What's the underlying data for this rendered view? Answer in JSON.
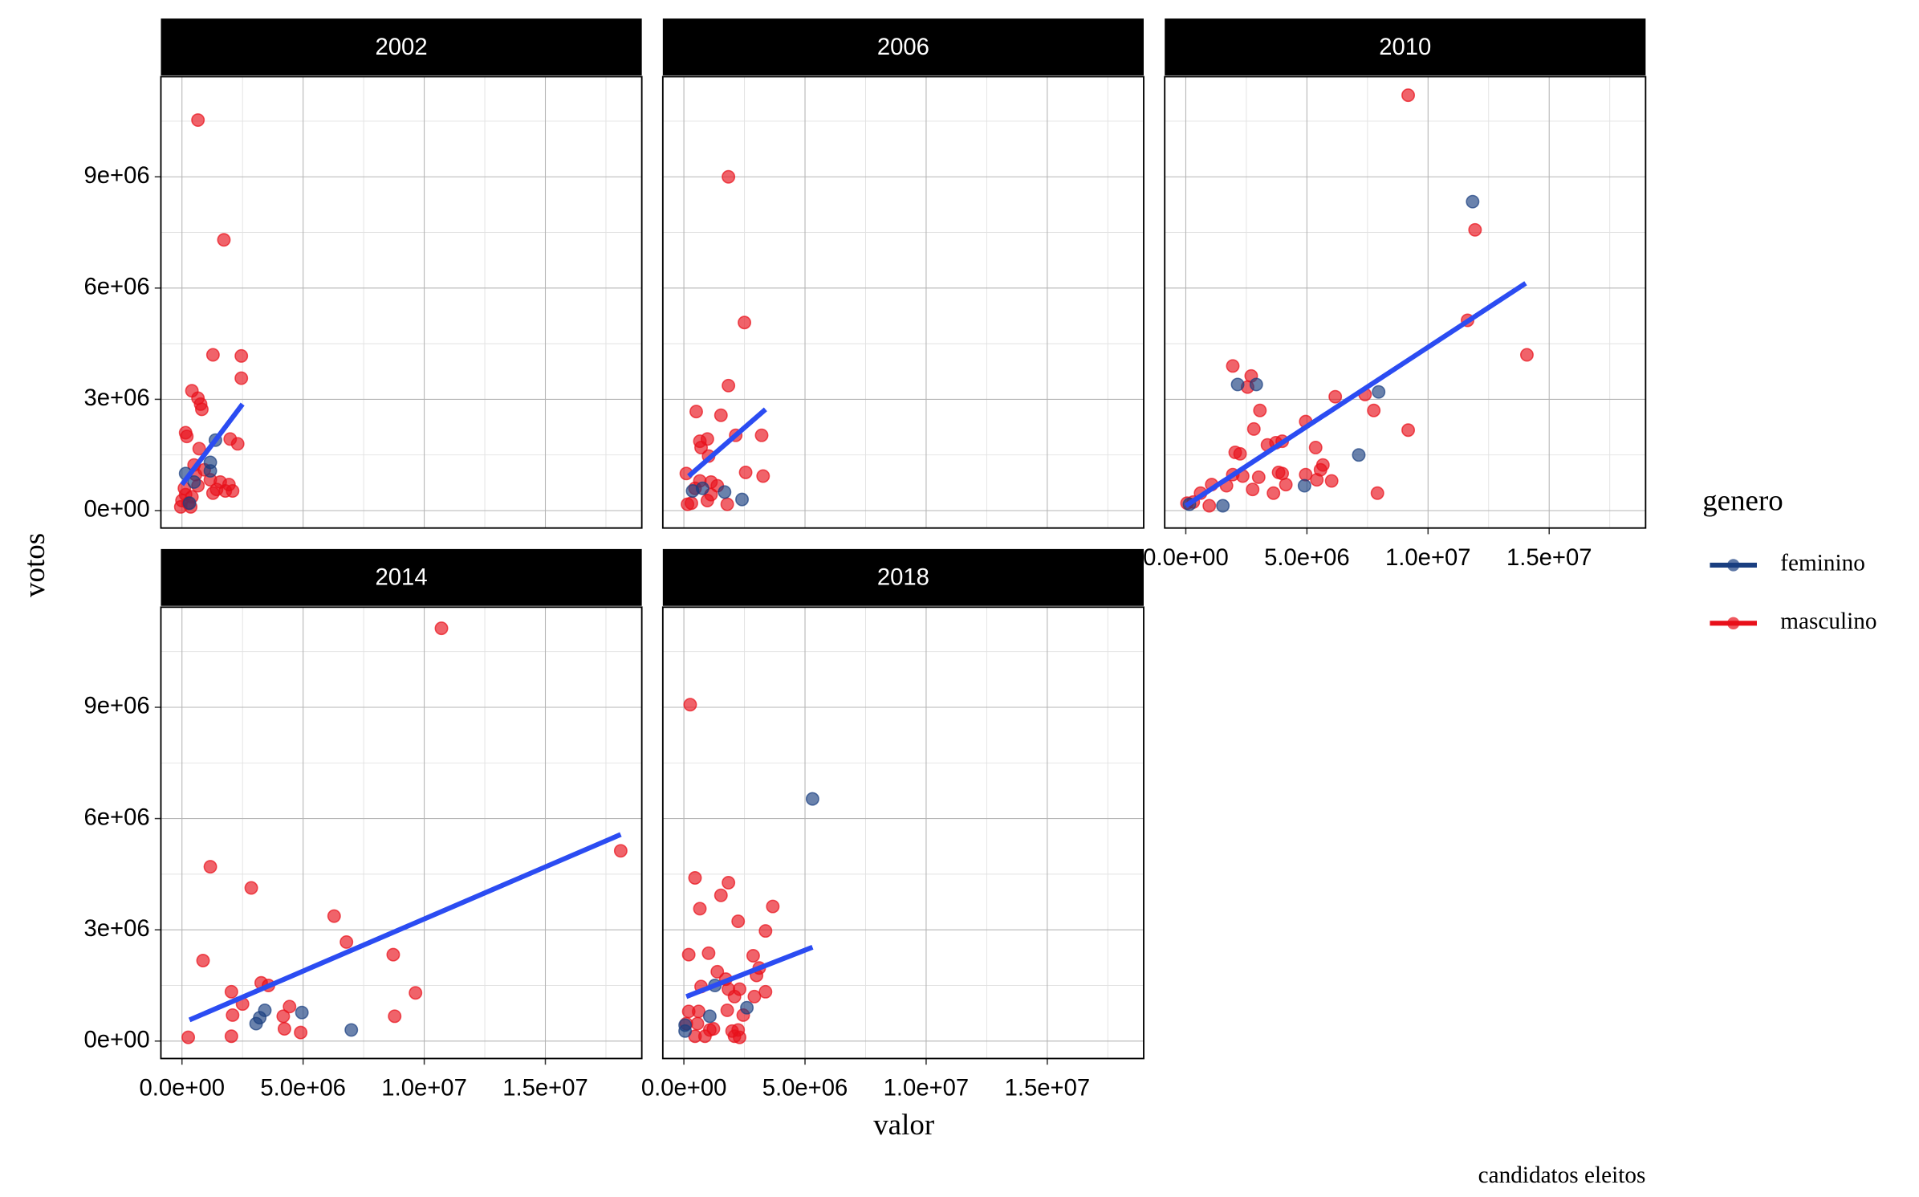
{
  "chart_data": {
    "type": "scatter",
    "x_label": "valor",
    "y_label": "votos",
    "legend_title": "genero",
    "caption": "candidatos eleitos",
    "xlim": [
      -870000.0,
      18980000.0
    ],
    "ylim": [
      -470000.0,
      11700000.0
    ],
    "xticks": [
      {
        "value": 0,
        "label": "0.0e+00"
      },
      {
        "value": 5000000.0,
        "label": "5.0e+06"
      },
      {
        "value": 10000000.0,
        "label": "1.0e+07"
      },
      {
        "value": 15000000.0,
        "label": "1.5e+07"
      }
    ],
    "yticks": [
      {
        "value": 0,
        "label": "0e+00"
      },
      {
        "value": 3000000.0,
        "label": "3e+06"
      },
      {
        "value": 6000000.0,
        "label": "6e+06"
      },
      {
        "value": 9000000.0,
        "label": "9e+06"
      }
    ],
    "x_minor": [
      2500000.0,
      7500000.0,
      12500000.0,
      17500000.0
    ],
    "y_minor": [
      1500000.0,
      4500000.0,
      7500000.0,
      10500000.0
    ],
    "grid": true,
    "trend_color": "#2b4cf2",
    "series": [
      {
        "name": "feminino",
        "color": "#1a3f80"
      },
      {
        "name": "masculino",
        "color": "#e8101a"
      }
    ],
    "facets": [
      {
        "title": "2002",
        "x": [
          [
            1380000.0,
            1170000.0,
            1170000.0,
            150000.0,
            500000.0,
            310000.0
          ],
          [
            660000.0,
            1730000.0,
            1280000.0,
            2450000.0,
            2450000.0,
            410000.0,
            660000.0,
            770000.0,
            820000.0,
            150000.0,
            200000.0,
            1990000.0,
            2300000.0,
            710000.0,
            500000.0,
            920000.0,
            560000.0,
            1170000.0,
            1580000.0,
            1940000.0,
            660000.0,
            1430000.0,
            1790000.0,
            2090000.0,
            1280000.0,
            150000.0,
            410000.0,
            0,
            260000.0,
            -50000.0,
            360000.0,
            100000.0
          ]
        ],
        "values": [
          [
            1900000.0,
            1300000.0,
            1070000.0,
            1000000.0,
            770000.0,
            200000.0
          ],
          [
            10530000.0,
            7300000.0,
            4200000.0,
            4170000.0,
            3570000.0,
            3230000.0,
            3030000.0,
            2870000.0,
            2730000.0,
            2100000.0,
            2000000.0,
            1930000.0,
            1800000.0,
            1670000.0,
            1230000.0,
            1100000.0,
            970000.0,
            830000.0,
            770000.0,
            700000.0,
            670000.0,
            570000.0,
            530000.0,
            530000.0,
            470000.0,
            430000.0,
            370000.0,
            270000.0,
            200000.0,
            100000.0,
            100000.0,
            600000.0
          ]
        ],
        "trend_x": [
          0,
          2500000.0
        ],
        "trend_values": [
          700000.0,
          2870000.0
        ]
      },
      {
        "title": "2006",
        "x": [
          [
            770000.0,
            1680000.0,
            2400000.0,
            360000.0
          ],
          [
            1840000.0,
            2500000.0,
            1840000.0,
            510000.0,
            1530000.0,
            2140000.0,
            3210000.0,
            970000.0,
            660000.0,
            710000.0,
            1020000.0,
            100000.0,
            2550000.0,
            3270000.0,
            660000.0,
            1120000.0,
            1380000.0,
            460000.0,
            1120000.0,
            310000.0,
            970000.0,
            1790000.0,
            150000.0
          ]
        ],
        "values": [
          [
            600000.0,
            500000.0,
            300000.0,
            530000.0
          ],
          [
            9000000.0,
            5070000.0,
            3370000.0,
            2670000.0,
            2570000.0,
            2030000.0,
            2030000.0,
            1930000.0,
            1870000.0,
            1700000.0,
            1470000.0,
            1000000.0,
            1030000.0,
            930000.0,
            800000.0,
            770000.0,
            670000.0,
            600000.0,
            430000.0,
            200000.0,
            270000.0,
            170000.0,
            170000.0
          ]
        ],
        "trend_x": [
          200000.0,
          3370000.0
        ],
        "trend_values": [
          930000.0,
          2730000.0
        ]
      },
      {
        "title": "2010",
        "x": [
          [
            11840000.0,
            7960000.0,
            2140000.0,
            2910000.0,
            7140000.0,
            4900000.0,
            1530000.0,
            150000.0
          ],
          [
            9180000.0,
            11940000.0,
            11630000.0,
            14080000.0,
            1940000.0,
            2700000.0,
            2550000.0,
            6170000.0,
            7400000.0,
            3060000.0,
            7760000.0,
            4950000.0,
            9180000.0,
            2810000.0,
            3980000.0,
            3370000.0,
            3720000.0,
            5360000.0,
            2040000.0,
            2240000.0,
            5660000.0,
            5560000.0,
            3830000.0,
            3980000.0,
            1940000.0,
            2350000.0,
            4950000.0,
            5410000.0,
            6020000.0,
            3010000.0,
            1070000.0,
            1680000.0,
            4130000.0,
            2760000.0,
            610000.0,
            3620000.0,
            7910000.0,
            970000.0,
            50000.0,
            310000.0
          ]
        ],
        "values": [
          [
            8330000.0,
            3200000.0,
            3400000.0,
            3400000.0,
            1500000.0,
            670000.0,
            130000.0,
            170000.0
          ],
          [
            11200000.0,
            7570000.0,
            5130000.0,
            4200000.0,
            3900000.0,
            3630000.0,
            3330000.0,
            3070000.0,
            3130000.0,
            2700000.0,
            2700000.0,
            2400000.0,
            2170000.0,
            2200000.0,
            1870000.0,
            1770000.0,
            1830000.0,
            1700000.0,
            1570000.0,
            1530000.0,
            1230000.0,
            1100000.0,
            1030000.0,
            1000000.0,
            970000.0,
            930000.0,
            970000.0,
            830000.0,
            800000.0,
            900000.0,
            700000.0,
            670000.0,
            700000.0,
            570000.0,
            470000.0,
            470000.0,
            470000.0,
            130000.0,
            200000.0,
            230000.0
          ]
        ],
        "trend_x": [
          0,
          14030000.0
        ],
        "trend_values": [
          130000.0,
          6130000.0
        ]
      },
      {
        "title": "2014",
        "x": [
          [
            3420000.0,
            3210000.0,
            4950000.0,
            3060000.0,
            6990000.0
          ],
          [
            10710000.0,
            1170000.0,
            2860000.0,
            6280000.0,
            6790000.0,
            8720000.0,
            870000.0,
            18110000.0,
            9640000.0,
            2040000.0,
            3270000.0,
            3570000.0,
            2500000.0,
            4440000.0,
            2090000.0,
            4180000.0,
            8780000.0,
            4230000.0,
            4900000.0,
            2040000.0,
            260000.0
          ]
        ],
        "values": [
          [
            830000.0,
            630000.0,
            770000.0,
            470000.0,
            300000.0
          ],
          [
            11130000.0,
            4700000.0,
            4130000.0,
            3370000.0,
            2670000.0,
            2330000.0,
            2170000.0,
            5130000.0,
            1300000.0,
            1330000.0,
            1570000.0,
            1500000.0,
            1000000.0,
            930000.0,
            700000.0,
            670000.0,
            670000.0,
            330000.0,
            230000.0,
            130000.0,
            100000.0
          ]
        ],
        "trend_x": [
          310000.0,
          18110000.0
        ],
        "trend_values": [
          570000.0,
          5570000.0
        ]
      },
      {
        "title": "2018",
        "x": [
          [
            5310000.0,
            1280000.0,
            1070000.0,
            2600000.0,
            50000.0,
            50000.0
          ],
          [
            260000.0,
            460000.0,
            1840000.0,
            3670000.0,
            1530000.0,
            660000.0,
            2240000.0,
            3370000.0,
            200000.0,
            1020000.0,
            2860000.0,
            3110000.0,
            1380000.0,
            3000000.0,
            1730000.0,
            710000.0,
            1840000.0,
            2300000.0,
            3370000.0,
            2090000.0,
            2910000.0,
            200000.0,
            610000.0,
            1790000.0,
            2450000.0,
            100000.0,
            1070000.0,
            1220000.0,
            1990000.0,
            2240000.0,
            460000.0,
            870000.0,
            2090000.0,
            2300000.0,
            560000.0
          ]
        ],
        "values": [
          [
            6530000.0,
            1500000.0,
            670000.0,
            900000.0,
            430000.0,
            270000.0
          ],
          [
            9070000.0,
            4400000.0,
            4270000.0,
            3630000.0,
            3930000.0,
            3570000.0,
            3230000.0,
            2970000.0,
            2330000.0,
            2370000.0,
            2300000.0,
            1970000.0,
            1870000.0,
            1770000.0,
            1670000.0,
            1470000.0,
            1400000.0,
            1400000.0,
            1330000.0,
            1200000.0,
            1200000.0,
            800000.0,
            800000.0,
            830000.0,
            700000.0,
            470000.0,
            300000.0,
            330000.0,
            270000.0,
            300000.0,
            130000.0,
            130000.0,
            130000.0,
            100000.0,
            470000.0
          ]
        ],
        "trend_x": [
          100000.0,
          5310000.0
        ],
        "trend_values": [
          1200000.0,
          2530000.0
        ]
      }
    ]
  }
}
